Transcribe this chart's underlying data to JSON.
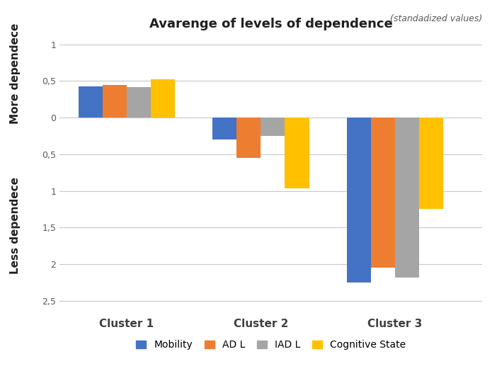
{
  "title": "Avarenge of levels of dependence",
  "subtitle": "(standadized values)",
  "ylabel_top": "More dependece",
  "ylabel_bottom": "Less dependece",
  "clusters": [
    "Cluster 1",
    "Cluster 2",
    "Cluster 3"
  ],
  "series_labels": [
    "Mobility",
    "AD L",
    "IAD L",
    "Cognitive State"
  ],
  "colors": [
    "#4472C4",
    "#ED7D31",
    "#A5A5A5",
    "#FFC000"
  ],
  "values": [
    [
      0.43,
      0.45,
      0.42,
      0.52
    ],
    [
      -0.3,
      -0.55,
      -0.25,
      -0.97
    ],
    [
      -2.25,
      -2.05,
      -2.18,
      -1.25
    ]
  ],
  "bar_width": 0.18,
  "background_color": "#FFFFFF",
  "ytick_vals": [
    1.0,
    0.5,
    0.0,
    -0.5,
    -1.0,
    -1.5,
    -2.0,
    -2.5
  ],
  "ytick_labels": [
    "1",
    "0,5",
    "0",
    "0,5",
    "1",
    "1,5",
    "2",
    "2,5"
  ],
  "ymin": -2.7,
  "ymax": 1.1,
  "xlim_min": -0.5,
  "xlim_max": 2.65
}
